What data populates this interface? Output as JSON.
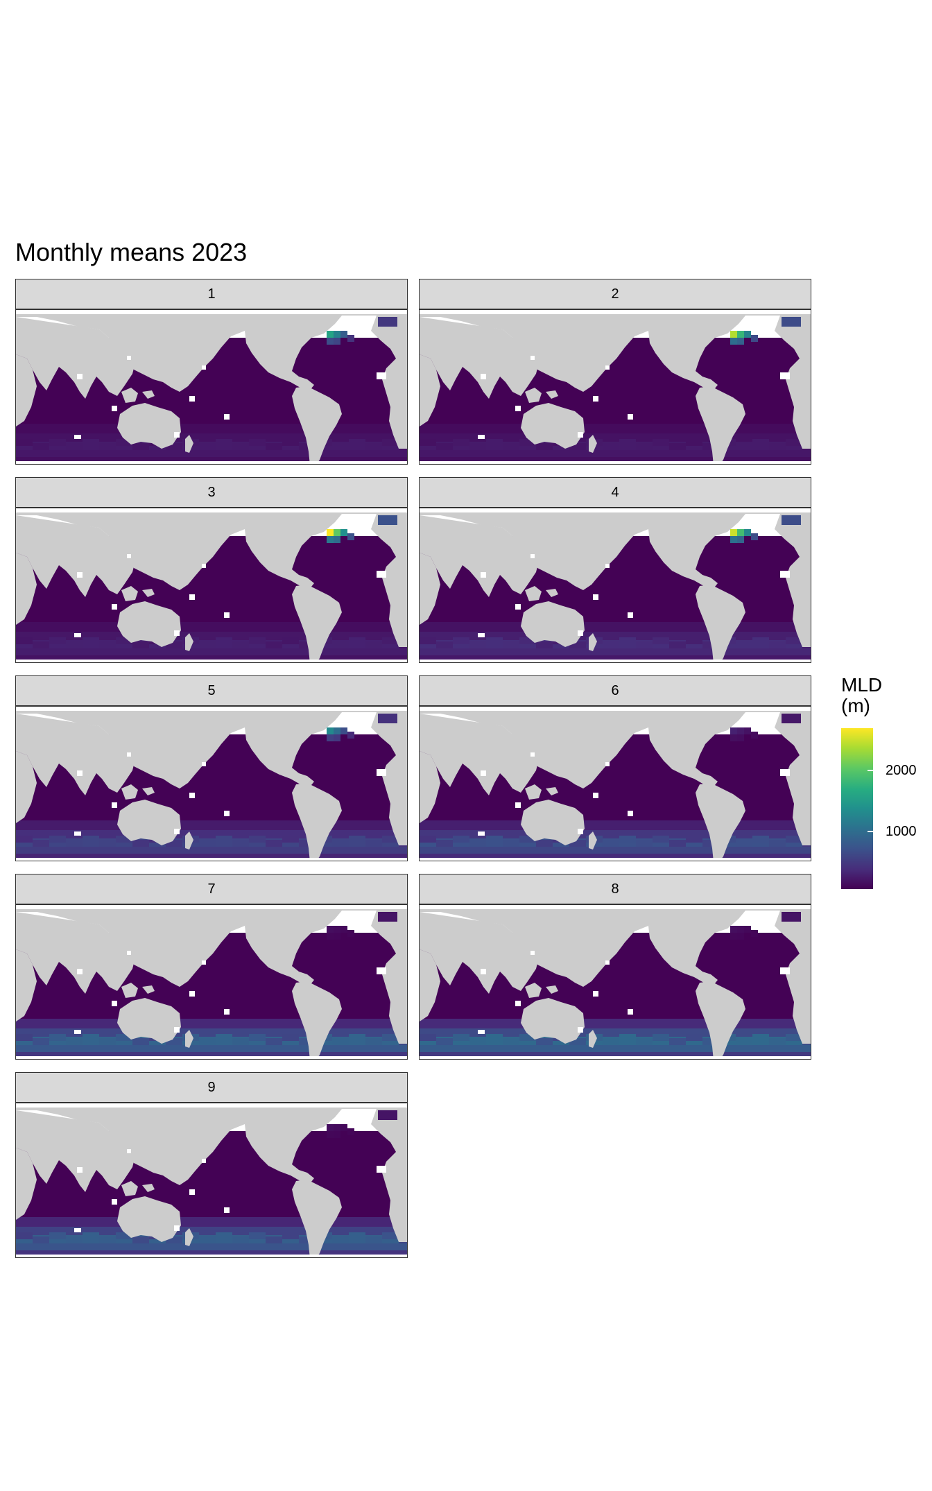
{
  "chart_data": {
    "type": "heatmap",
    "title": "Monthly means 2023",
    "facet_labels": [
      "1",
      "2",
      "3",
      "4",
      "5",
      "6",
      "7",
      "8",
      "9"
    ],
    "legend": {
      "title": "MLD\n(m)",
      "ticks": [
        1000,
        2000
      ],
      "tick_labels": [
        "1000",
        "2000"
      ],
      "range": [
        50,
        2700
      ],
      "colormap": "viridis",
      "placement": "right"
    },
    "colors": {
      "land": "#cccccc",
      "no_data": "#ffffff",
      "strip": "#d9d9d9"
    },
    "monthly_hotspot_north_atlantic_mld_m": [
      1600,
      2400,
      2700,
      2500,
      1300,
      300,
      150,
      150,
      150
    ],
    "monthly_southern_ocean_peak_mld_m": [
      250,
      250,
      300,
      400,
      600,
      700,
      900,
      950,
      850
    ]
  }
}
